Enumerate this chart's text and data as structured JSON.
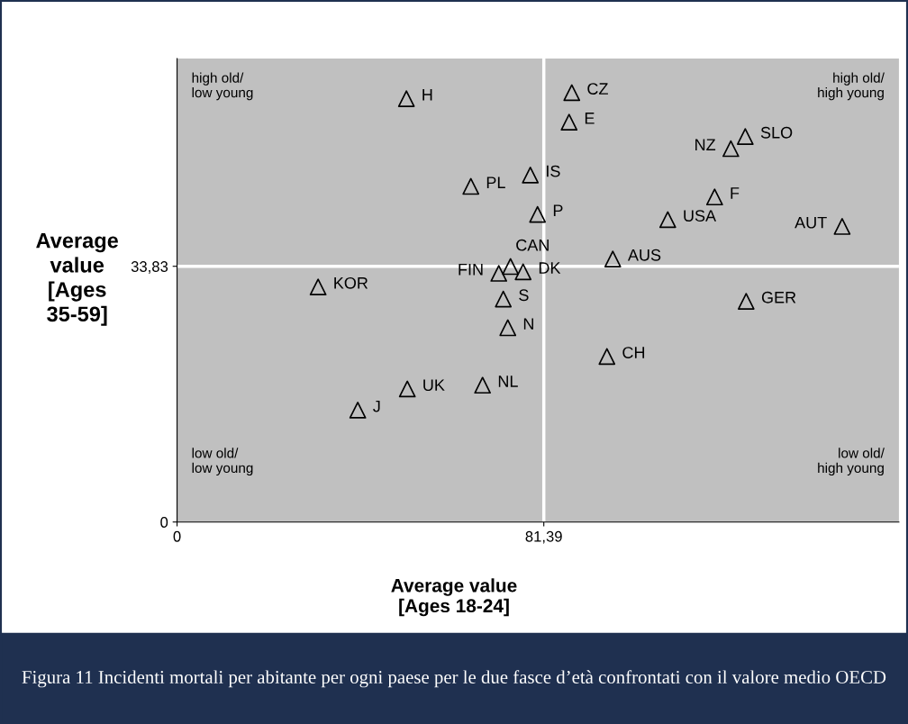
{
  "chart_data": {
    "type": "scatter",
    "xlabel": "Average value [Ages 18-24]",
    "ylabel": "Average value [Ages 35-59]",
    "x": [
      50.9,
      87.6,
      87.0,
      122.9,
      126.1,
      78.4,
      65.2,
      119.3,
      80.0,
      108.9,
      147.6,
      74.0,
      96.7,
      71.4,
      76.8,
      31.3,
      72.4,
      126.3,
      73.4,
      95.4,
      51.1,
      67.8,
      40.1
    ],
    "series": [
      {
        "color": "#000000",
        "values": [
          56.0,
          56.8,
          52.9,
          49.4,
          51.0,
          45.9,
          44.4,
          43.0,
          40.7,
          40.0,
          39.1,
          33.8,
          34.8,
          32.9,
          33.1,
          31.1,
          29.5,
          29.2,
          25.7,
          21.9,
          17.6,
          18.1,
          14.8
        ]
      }
    ],
    "marker": "triangle",
    "grid": false,
    "legend": false,
    "xlim": [
      0,
      160.2
    ],
    "ylim": [
      0,
      61.3
    ],
    "xticks": [
      0,
      {
        "value": 81.39,
        "label": "81,39"
      }
    ],
    "yticks": [
      0,
      {
        "value": 33.83,
        "label": "33,83"
      }
    ],
    "ref_lines": [
      {
        "axis": "x",
        "value": 81.39,
        "color": "#ffffff"
      },
      {
        "axis": "y",
        "value": 33.83,
        "color": "#ffffff"
      }
    ],
    "annotations": [
      "high old/\nlow young",
      "high old/\nhigh young",
      "low old/\nlow young",
      "low old/\nhigh young",
      "Figura 11 Incidenti mortali per abitante per ogni paese per le due fasce d’età confrontati con il valore medio OECD",
      {
        "text": "H",
        "x": 50.9,
        "y": 56.0
      },
      {
        "text": "CZ",
        "x": 87.6,
        "y": 56.8
      },
      {
        "text": "E",
        "x": 87.0,
        "y": 52.9
      },
      {
        "text": "NZ",
        "x": 122.9,
        "y": 49.4
      },
      {
        "text": "SLO",
        "x": 126.1,
        "y": 51.0
      },
      {
        "text": "IS",
        "x": 78.4,
        "y": 45.9
      },
      {
        "text": "PL",
        "x": 65.2,
        "y": 44.4
      },
      {
        "text": "F",
        "x": 119.3,
        "y": 43.0
      },
      {
        "text": "P",
        "x": 80.0,
        "y": 40.7
      },
      {
        "text": "USA",
        "x": 108.9,
        "y": 40.0
      },
      {
        "text": "AUT",
        "x": 147.6,
        "y": 39.1
      },
      {
        "text": "CAN",
        "x": 74.0,
        "y": 33.8
      },
      {
        "text": "AUS",
        "x": 96.7,
        "y": 34.8
      },
      {
        "text": "FIN",
        "x": 71.4,
        "y": 32.9
      },
      {
        "text": "DK",
        "x": 76.8,
        "y": 33.1
      },
      {
        "text": "KOR",
        "x": 31.3,
        "y": 31.1
      },
      {
        "text": "S",
        "x": 72.4,
        "y": 29.5
      },
      {
        "text": "GER",
        "x": 126.3,
        "y": 29.2
      },
      {
        "text": "N",
        "x": 73.4,
        "y": 25.7
      },
      {
        "text": "CH",
        "x": 95.4,
        "y": 21.9
      },
      {
        "text": "UK",
        "x": 51.1,
        "y": 17.6
      },
      {
        "text": "NL",
        "x": 67.8,
        "y": 18.1
      },
      {
        "text": "J",
        "x": 40.1,
        "y": 14.8
      }
    ]
  }
}
